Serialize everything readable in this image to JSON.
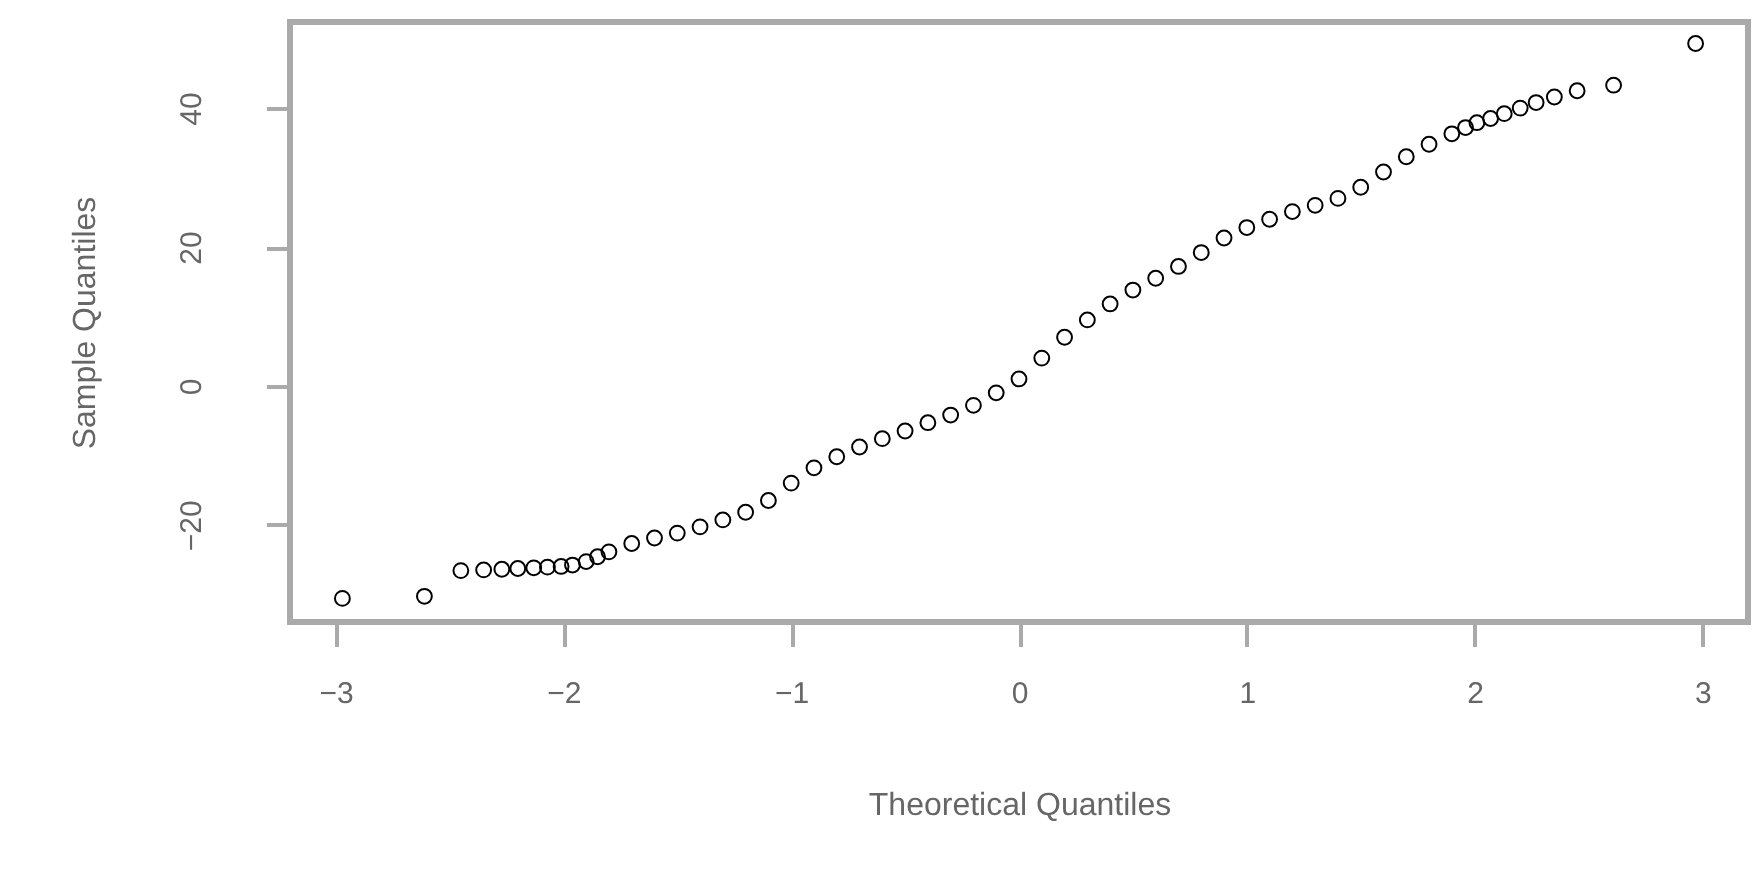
{
  "chart_data": {
    "type": "scatter",
    "xlabel": "Theoretical Quantiles",
    "ylabel": "Sample Quantiles",
    "marker": "circle",
    "xlim": [
      -3.2,
      3.2
    ],
    "xticks": [
      -3,
      -2,
      -1,
      0,
      1,
      2,
      3
    ],
    "ylim": [
      -34,
      52.4
    ],
    "yticks": [
      -20,
      0,
      20,
      40
    ],
    "series": [
      {
        "color": "#000000",
        "x": [
          -2.97,
          -2.61,
          -2.45,
          -2.35,
          -2.27,
          -2.2,
          -2.13,
          -2.07,
          -2.01,
          -1.96,
          -1.9,
          -1.85,
          -1.8,
          -1.7,
          -1.6,
          -1.5,
          -1.4,
          -1.3,
          -1.2,
          -1.1,
          -1.0,
          -0.9,
          -0.8,
          -0.7,
          -0.6,
          -0.5,
          -0.4,
          -0.3,
          -0.2,
          -0.1,
          0,
          0.1,
          0.2,
          0.3,
          0.4,
          0.5,
          0.6,
          0.7,
          0.8,
          0.9,
          1.0,
          1.1,
          1.2,
          1.3,
          1.4,
          1.5,
          1.6,
          1.7,
          1.8,
          1.9,
          1.96,
          2.01,
          2.07,
          2.13,
          2.2,
          2.27,
          2.35,
          2.45,
          2.61,
          2.97
        ],
        "values": [
          -30.6,
          -30.3,
          -26.6,
          -26.5,
          -26.4,
          -26.3,
          -26.2,
          -26.1,
          -26.0,
          -25.8,
          -25.3,
          -24.6,
          -23.9,
          -22.7,
          -21.9,
          -21.2,
          -20.3,
          -19.3,
          -18.2,
          -16.5,
          -14.0,
          -11.8,
          -10.2,
          -8.8,
          -7.6,
          -6.5,
          -5.3,
          -4.2,
          -2.8,
          -1.0,
          1.0,
          4.0,
          7.0,
          9.5,
          11.8,
          13.8,
          15.5,
          17.2,
          19.2,
          21.3,
          22.8,
          24.0,
          25.1,
          26.0,
          27.0,
          28.6,
          30.8,
          33.0,
          34.8,
          36.3,
          37.2,
          37.9,
          38.5,
          39.2,
          40.0,
          40.8,
          41.6,
          42.5,
          43.3,
          49.3
        ]
      }
    ]
  }
}
